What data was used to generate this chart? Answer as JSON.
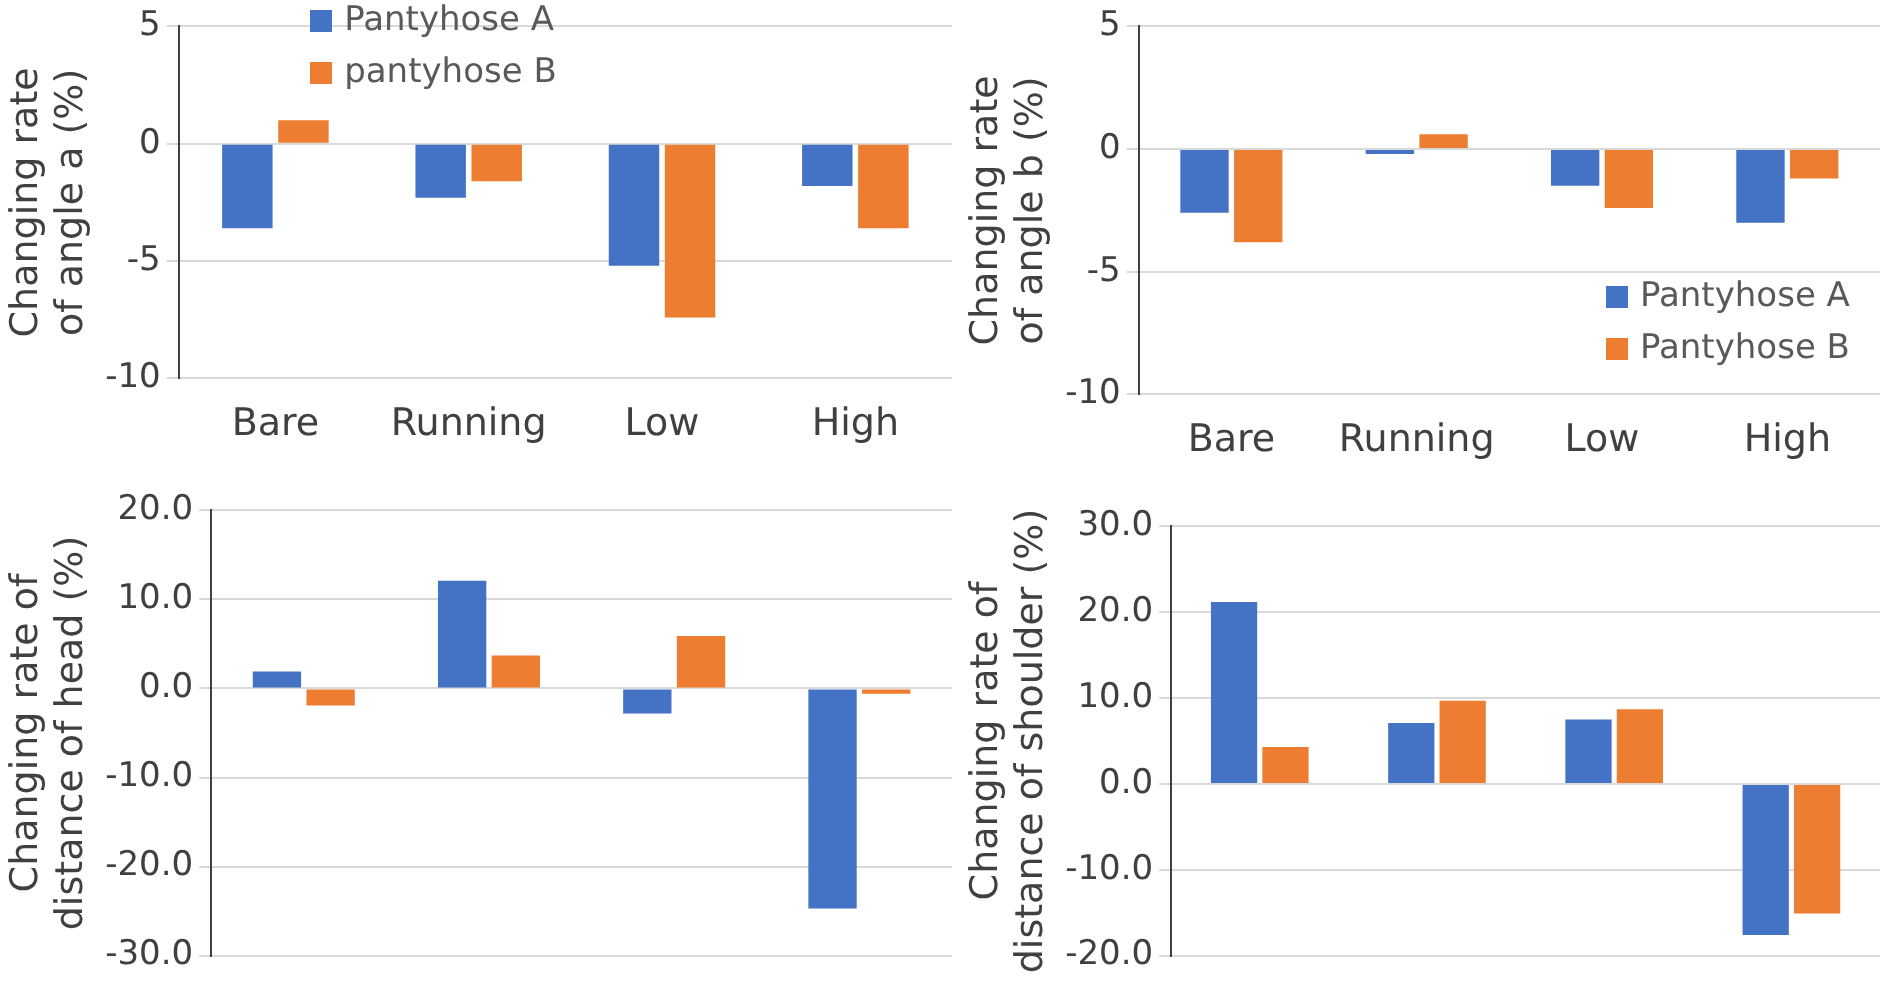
{
  "chart_data": [
    {
      "type": "bar",
      "categories": [
        "Bare",
        "Running",
        "Low",
        "High"
      ],
      "ylabel": "Changing rate of angle a (%)",
      "series": [
        {
          "name": "Pantyhose A",
          "color": "#4472c4",
          "values": [
            -3.6,
            -2.3,
            -5.2,
            -1.8
          ]
        },
        {
          "name": "pantyhose B",
          "color": "#ed7d31",
          "values": [
            1.0,
            -1.6,
            -7.4,
            -3.6
          ]
        }
      ],
      "ylim": [
        -10,
        5
      ],
      "yticks": [
        -10,
        -5,
        0,
        5
      ],
      "grid": "y",
      "legend": "top"
    },
    {
      "type": "bar",
      "categories": [
        "Bare",
        "Running",
        "Low",
        "High"
      ],
      "ylabel": "Changing rate of angle b (%)",
      "series": [
        {
          "name": "Pantyhose A",
          "color": "#4472c4",
          "values": [
            -2.6,
            -0.2,
            -1.5,
            -3.0
          ]
        },
        {
          "name": "Pantyhose B",
          "color": "#ed7d31",
          "values": [
            -3.8,
            0.6,
            -2.4,
            -1.2
          ]
        }
      ],
      "ylim": [
        -10,
        5
      ],
      "yticks": [
        -10,
        -5,
        0,
        5
      ],
      "grid": "y",
      "legend": "bottom right"
    },
    {
      "type": "bar",
      "categories": [
        null,
        null,
        null,
        null
      ],
      "ylabel": "Changing rate of distance of head (%)",
      "series": [
        {
          "color": "#4472c4",
          "values": [
            1.9,
            12.1,
            -2.8,
            -24.7
          ]
        },
        {
          "color": "#ed7d31",
          "values": [
            -1.9,
            3.7,
            5.9,
            -0.6
          ]
        }
      ],
      "ylim": [
        -30,
        20
      ],
      "yticks": [
        {
          "value": -30,
          "label": "-30.0"
        },
        {
          "value": -20,
          "label": "-20.0"
        },
        {
          "value": -10,
          "label": "-10.0"
        },
        {
          "value": 0,
          "label": "0.0"
        },
        {
          "value": 10,
          "label": "10.0"
        },
        {
          "value": 20,
          "label": "20.0"
        }
      ],
      "grid": "y",
      "tick_labels": "y"
    },
    {
      "type": "bar",
      "categories": [
        null,
        null,
        null,
        null
      ],
      "ylabel": "Changing rate of distance of shoulder (%)",
      "series": [
        {
          "color": "#4472c4",
          "values": [
            21.2,
            7.1,
            7.5,
            -17.6
          ]
        },
        {
          "color": "#ed7d31",
          "values": [
            4.3,
            9.7,
            8.7,
            -15.1
          ]
        }
      ],
      "ylim": [
        -20,
        30
      ],
      "yticks": [
        {
          "value": -20,
          "label": "-20.0"
        },
        {
          "value": -10,
          "label": "-10.0"
        },
        {
          "value": 0,
          "label": "0.0"
        },
        {
          "value": 10,
          "label": "10.0"
        },
        {
          "value": 20,
          "label": "20.0"
        },
        {
          "value": 30,
          "label": "30.0"
        }
      ],
      "grid": "y",
      "tick_labels": "y"
    }
  ]
}
